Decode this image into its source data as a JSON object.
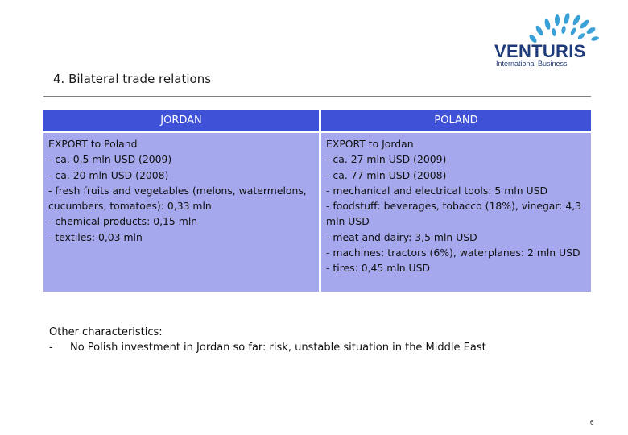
{
  "logo": {
    "brand": "VENTURIS",
    "subtitle": "International Business"
  },
  "title": "4. Bilateral trade relations",
  "columns": {
    "jordan": {
      "header": "JORDAN",
      "heading": "EXPORT to Poland",
      "lines": [
        "- ca. 0,5 mln USD (2009)",
        "- ca. 20 mln USD (2008)",
        "- fresh fruits and vegetables (melons, watermelons, cucumbers, tomatoes): 0,33 mln",
        "- chemical products: 0,15 mln",
        "- textiles: 0,03 mln"
      ]
    },
    "poland": {
      "header": "POLAND",
      "heading": "EXPORT to Jordan",
      "lines": [
        "- ca. 27 mln USD (2009)",
        "- ca. 77 mln USD (2008)",
        "- mechanical and electrical tools: 5 mln USD",
        "- foodstuff: beverages, tobacco (18%), vinegar: 4,3 mln USD",
        "- meat and dairy: 3,5 mln USD",
        "- machines: tractors (6%), waterplanes: 2 mln USD",
        "- tires: 0,45 mln USD"
      ]
    }
  },
  "other": {
    "heading": "Other characteristics:",
    "bullet": "-",
    "item": "No Polish investment in Jordan so far: risk, unstable situation in the Middle East"
  },
  "page_number": "6",
  "colors": {
    "header_bg": "#3f51d6",
    "cell_bg": "#a5a8ec",
    "brand": "#1f3a7a",
    "logo_swirl": "#3aa0d8"
  }
}
